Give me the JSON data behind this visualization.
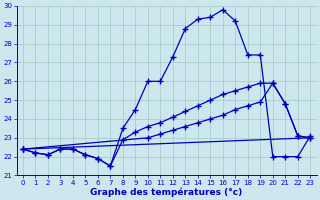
{
  "xlabel": "Graphe des températures (°c)",
  "xlim": [
    -0.5,
    23.5
  ],
  "ylim": [
    21,
    30
  ],
  "yticks": [
    21,
    22,
    23,
    24,
    25,
    26,
    27,
    28,
    29,
    30
  ],
  "xticks": [
    0,
    1,
    2,
    3,
    4,
    5,
    6,
    7,
    8,
    9,
    10,
    11,
    12,
    13,
    14,
    15,
    16,
    17,
    18,
    19,
    20,
    21,
    22,
    23
  ],
  "bg_color": "#cce8ee",
  "grid_color": "#aacccc",
  "line_color": "#0000bb",
  "line1_x": [
    0,
    1,
    2,
    3,
    4,
    5,
    6,
    7,
    8,
    9,
    10,
    11,
    12,
    13,
    14,
    15,
    16,
    17,
    18,
    19,
    20,
    21,
    22,
    23
  ],
  "line1_y": [
    22.4,
    22.2,
    22.1,
    22.4,
    22.4,
    22.1,
    21.9,
    21.5,
    22.9,
    23.3,
    23.6,
    23.8,
    24.1,
    24.4,
    24.7,
    25.0,
    25.3,
    25.5,
    25.7,
    25.9,
    25.9,
    24.8,
    23.1,
    23.0
  ],
  "line2_x": [
    0,
    1,
    2,
    3,
    4,
    5,
    6,
    7,
    8,
    9,
    10,
    11,
    12,
    13,
    14,
    15,
    16,
    17,
    18,
    19,
    20,
    21,
    22,
    23
  ],
  "line2_y": [
    22.4,
    22.2,
    22.1,
    22.4,
    22.4,
    22.1,
    21.9,
    21.5,
    23.5,
    24.5,
    26.0,
    26.0,
    27.3,
    28.8,
    29.3,
    29.4,
    29.8,
    29.2,
    27.4,
    27.4,
    22.0,
    22.0,
    22.0,
    23.1
  ],
  "line3_x": [
    0,
    10,
    11,
    12,
    13,
    14,
    15,
    16,
    17,
    18,
    19,
    20,
    21,
    22,
    23
  ],
  "line3_y": [
    22.4,
    23.0,
    23.2,
    23.4,
    23.6,
    23.8,
    24.0,
    24.2,
    24.5,
    24.7,
    24.9,
    25.9,
    24.8,
    23.1,
    23.0
  ],
  "line4_x": [
    0,
    23
  ],
  "line4_y": [
    22.4,
    23.0
  ]
}
